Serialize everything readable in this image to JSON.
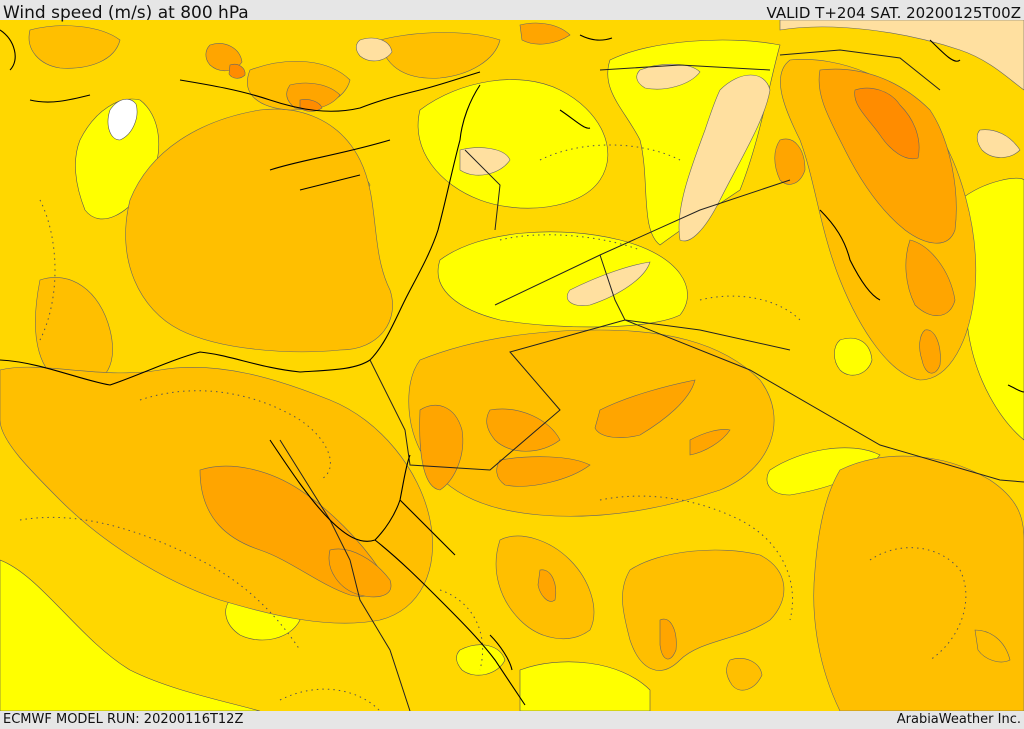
{
  "header": {
    "title": "Wind speed (m/s) at 800 hPa",
    "valid": "VALID T+204 SAT. 20200125T00Z"
  },
  "footer": {
    "model_run": "ECMWF MODEL RUN: 20200116T12Z",
    "credit": "ArabiaWeather Inc."
  },
  "colors": {
    "white": "#ffffff",
    "yellow": "#ffff00",
    "gold": "#ffd700",
    "orange_light": "#ffbf00",
    "orange": "#ffa500",
    "orange_dark": "#ff8c00",
    "peach": "#ffe0a0",
    "coast": "#000000"
  }
}
